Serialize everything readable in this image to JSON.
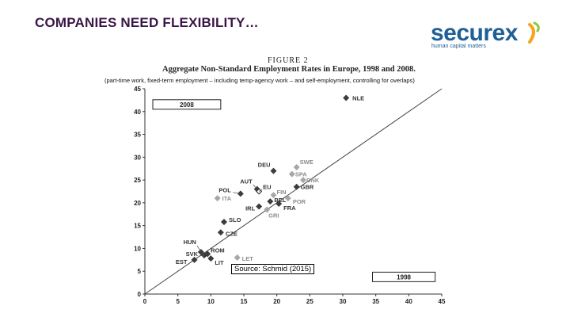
{
  "slide": {
    "title": "COMPANIES NEED FLEXIBILITY…",
    "logo": {
      "word": "securex",
      "tagline": "human capital matters"
    },
    "figure_number": "FIGURE 2",
    "figure_caption": "Aggregate Non-Standard Employment Rates in Europe, 1998 and 2008.",
    "note": "(part-time work, fixed-term employment – including temp-agency work – and self-employment, controlling for overlaps)",
    "source": "Source: Schmid (2015)"
  },
  "colors": {
    "title": "#3b1547",
    "logo": "#1e5f96",
    "point_dark": "#3c3c3c",
    "point_light": "#a7a7a7"
  },
  "chart_data": {
    "type": "scatter",
    "title": "Aggregate Non-Standard Employment Rates in Europe, 1998 and 2008.",
    "xlabel": "1998",
    "ylabel": "2008",
    "xlim": [
      0,
      45
    ],
    "ylim": [
      0,
      45
    ],
    "xticks": [
      0,
      5,
      10,
      15,
      20,
      25,
      30,
      35,
      40,
      45
    ],
    "yticks": [
      0,
      5,
      10,
      15,
      20,
      25,
      30,
      35,
      40,
      45
    ],
    "diagonal": true,
    "box_labels": {
      "y_axis_box": "2008",
      "x_axis_box": "1998"
    },
    "points": [
      {
        "label": "NLE",
        "x": 30.5,
        "y": 43.0,
        "shade": "dark"
      },
      {
        "label": "DEU",
        "x": 19.5,
        "y": 27.0,
        "shade": "dark"
      },
      {
        "label": "SWE",
        "x": 23.0,
        "y": 27.8,
        "shade": "light"
      },
      {
        "label": "SPA",
        "x": 22.3,
        "y": 26.3,
        "shade": "light"
      },
      {
        "label": "DNK",
        "x": 24.0,
        "y": 25.0,
        "shade": "light"
      },
      {
        "label": "AUT",
        "x": 17.0,
        "y": 23.0,
        "shade": "dark"
      },
      {
        "label": "EU",
        "x": 17.3,
        "y": 22.5,
        "shade": "open"
      },
      {
        "label": "GBR",
        "x": 23.0,
        "y": 23.5,
        "shade": "dark"
      },
      {
        "label": "POL",
        "x": 14.5,
        "y": 22.0,
        "shade": "dark"
      },
      {
        "label": "FIN",
        "x": 19.5,
        "y": 21.7,
        "shade": "light"
      },
      {
        "label": "POR",
        "x": 21.7,
        "y": 21.0,
        "shade": "light"
      },
      {
        "label": "BEL",
        "x": 19.0,
        "y": 20.3,
        "shade": "dark"
      },
      {
        "label": "ITA",
        "x": 11.0,
        "y": 21.0,
        "shade": "light"
      },
      {
        "label": "FRA",
        "x": 20.3,
        "y": 19.8,
        "shade": "dark"
      },
      {
        "label": "IRL",
        "x": 17.3,
        "y": 19.2,
        "shade": "dark"
      },
      {
        "label": "GRI",
        "x": 18.5,
        "y": 18.5,
        "shade": "light"
      },
      {
        "label": "SLO",
        "x": 12.0,
        "y": 15.8,
        "shade": "dark"
      },
      {
        "label": "CZE",
        "x": 11.5,
        "y": 13.5,
        "shade": "dark"
      },
      {
        "label": "HUN",
        "x": 8.5,
        "y": 9.2,
        "shade": "dark"
      },
      {
        "label": "ROM",
        "x": 9.5,
        "y": 8.8,
        "shade": "dark"
      },
      {
        "label": "SVK",
        "x": 9.0,
        "y": 8.5,
        "shade": "dark"
      },
      {
        "label": "LET",
        "x": 14.0,
        "y": 8.0,
        "shade": "light"
      },
      {
        "label": "EST",
        "x": 7.5,
        "y": 7.5,
        "shade": "dark"
      },
      {
        "label": "LIT",
        "x": 10.0,
        "y": 7.8,
        "shade": "dark"
      }
    ]
  }
}
